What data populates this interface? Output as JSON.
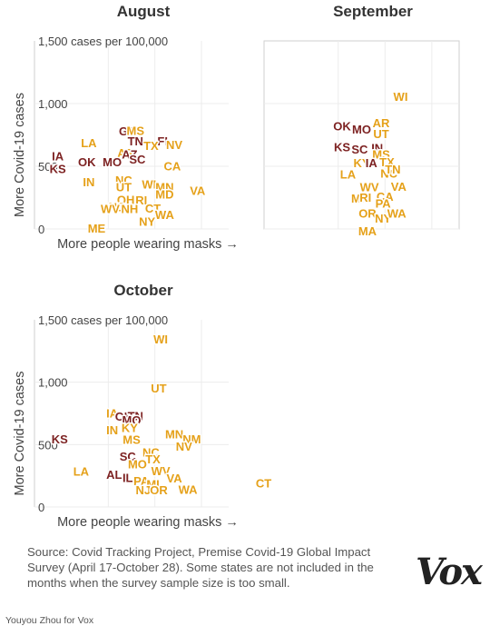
{
  "colors": {
    "above": "#7d2222",
    "below": "#e5a11a"
  },
  "labels": {
    "top_tick": "1,500 cases per 100,000",
    "ylabel": "More Covid-19 cases",
    "xlabel": "More people wearing masks →"
  },
  "source": "Source: Covid Tracking Project, Premise Covid-19 Global Impact Survey (April 17-October 28). Some states are not included in the months when the survey sample size is too small.",
  "credit": "Youyou Zhou for Vox",
  "logo": "Vox",
  "chart_data": [
    {
      "type": "scatter",
      "title": "August",
      "ylabel": "More Covid-19 cases",
      "xlabel": "More people wearing masks →",
      "yticks": [
        "0",
        "500",
        "1,000",
        "1,500 cases per 100,000"
      ],
      "ylim": [
        0,
        1500
      ],
      "show_axis_labels": true,
      "points": [
        {
          "s": "GA",
          "x": 0.48,
          "y": 775,
          "c": "above"
        },
        {
          "s": "MS",
          "x": 0.52,
          "y": 780,
          "c": "below"
        },
        {
          "s": "TN",
          "x": 0.52,
          "y": 695,
          "c": "above"
        },
        {
          "s": "FL",
          "x": 0.67,
          "y": 695,
          "c": "above"
        },
        {
          "s": "LA",
          "x": 0.28,
          "y": 680,
          "c": "below"
        },
        {
          "s": "TX",
          "x": 0.6,
          "y": 660,
          "c": "below"
        },
        {
          "s": "NV",
          "x": 0.72,
          "y": 665,
          "c": "below"
        },
        {
          "s": "AR",
          "x": 0.47,
          "y": 600,
          "c": "below"
        },
        {
          "s": "AZ",
          "x": 0.49,
          "y": 590,
          "c": "above"
        },
        {
          "s": "IA",
          "x": 0.12,
          "y": 575,
          "c": "above"
        },
        {
          "s": "SC",
          "x": 0.53,
          "y": 550,
          "c": "above"
        },
        {
          "s": "OK",
          "x": 0.27,
          "y": 530,
          "c": "above"
        },
        {
          "s": "MO",
          "x": 0.4,
          "y": 530,
          "c": "above"
        },
        {
          "s": "KS",
          "x": 0.12,
          "y": 475,
          "c": "above"
        },
        {
          "s": "CA",
          "x": 0.71,
          "y": 495,
          "c": "below"
        },
        {
          "s": "NC",
          "x": 0.46,
          "y": 385,
          "c": "below"
        },
        {
          "s": "IN",
          "x": 0.28,
          "y": 370,
          "c": "below"
        },
        {
          "s": "UT",
          "x": 0.46,
          "y": 330,
          "c": "below"
        },
        {
          "s": "WI",
          "x": 0.59,
          "y": 350,
          "c": "below"
        },
        {
          "s": "MN",
          "x": 0.67,
          "y": 330,
          "c": "below"
        },
        {
          "s": "VA",
          "x": 0.84,
          "y": 300,
          "c": "below"
        },
        {
          "s": "MD",
          "x": 0.67,
          "y": 270,
          "c": "below"
        },
        {
          "s": "OH",
          "x": 0.47,
          "y": 230,
          "c": "below"
        },
        {
          "s": "RI",
          "x": 0.55,
          "y": 225,
          "c": "below"
        },
        {
          "s": "NJ",
          "x": 0.42,
          "y": 170,
          "c": "below"
        },
        {
          "s": "WV",
          "x": 0.39,
          "y": 155,
          "c": "below"
        },
        {
          "s": "NH",
          "x": 0.49,
          "y": 155,
          "c": "below"
        },
        {
          "s": "CT",
          "x": 0.61,
          "y": 160,
          "c": "below"
        },
        {
          "s": "WA",
          "x": 0.67,
          "y": 110,
          "c": "below"
        },
        {
          "s": "NY",
          "x": 0.58,
          "y": 55,
          "c": "below"
        },
        {
          "s": "ME",
          "x": 0.32,
          "y": 0,
          "c": "below"
        }
      ]
    },
    {
      "type": "scatter",
      "title": "September",
      "yticks": [],
      "ylim": [
        0,
        1500
      ],
      "show_axis_labels": false,
      "points": [
        {
          "s": "WI",
          "x": 0.7,
          "y": 1050,
          "c": "below"
        },
        {
          "s": "AR",
          "x": 0.6,
          "y": 840,
          "c": "below"
        },
        {
          "s": "OK",
          "x": 0.4,
          "y": 815,
          "c": "above"
        },
        {
          "s": "MO",
          "x": 0.5,
          "y": 790,
          "c": "above"
        },
        {
          "s": "UT",
          "x": 0.6,
          "y": 755,
          "c": "below"
        },
        {
          "s": "KS",
          "x": 0.4,
          "y": 650,
          "c": "above"
        },
        {
          "s": "SC",
          "x": 0.49,
          "y": 630,
          "c": "above"
        },
        {
          "s": "IN",
          "x": 0.58,
          "y": 640,
          "c": "above"
        },
        {
          "s": "MS",
          "x": 0.6,
          "y": 590,
          "c": "below"
        },
        {
          "s": "KY",
          "x": 0.5,
          "y": 520,
          "c": "below"
        },
        {
          "s": "IA",
          "x": 0.55,
          "y": 520,
          "c": "above"
        },
        {
          "s": "TX",
          "x": 0.63,
          "y": 530,
          "c": "below"
        },
        {
          "s": "LA",
          "x": 0.43,
          "y": 430,
          "c": "below"
        },
        {
          "s": "NC",
          "x": 0.64,
          "y": 440,
          "c": "below"
        },
        {
          "s": "TN",
          "x": 0.66,
          "y": 470,
          "c": "below"
        },
        {
          "s": "WV",
          "x": 0.54,
          "y": 330,
          "c": "below"
        },
        {
          "s": "VA",
          "x": 0.69,
          "y": 335,
          "c": "below"
        },
        {
          "s": "MI",
          "x": 0.48,
          "y": 240,
          "c": "below"
        },
        {
          "s": "RI",
          "x": 0.52,
          "y": 245,
          "c": "below"
        },
        {
          "s": "CA",
          "x": 0.62,
          "y": 255,
          "c": "below"
        },
        {
          "s": "PA",
          "x": 0.61,
          "y": 200,
          "c": "below"
        },
        {
          "s": "OR",
          "x": 0.53,
          "y": 120,
          "c": "below"
        },
        {
          "s": "NY",
          "x": 0.61,
          "y": 80,
          "c": "below"
        },
        {
          "s": "WA",
          "x": 0.68,
          "y": 120,
          "c": "below"
        },
        {
          "s": "MA",
          "x": 0.53,
          "y": -20,
          "c": "below"
        }
      ]
    },
    {
      "type": "scatter",
      "title": "October",
      "ylabel": "More Covid-19 cases",
      "xlabel": "More people wearing masks →",
      "yticks": [
        "0",
        "500",
        "1,000",
        "1,500 cases per 100,000"
      ],
      "ylim": [
        0,
        1500
      ],
      "show_axis_labels": true,
      "points": [
        {
          "s": "WI",
          "x": 0.65,
          "y": 1340,
          "c": "below"
        },
        {
          "s": "UT",
          "x": 0.64,
          "y": 945,
          "c": "below"
        },
        {
          "s": "IA",
          "x": 0.4,
          "y": 745,
          "c": "below"
        },
        {
          "s": "OK",
          "x": 0.46,
          "y": 720,
          "c": "above"
        },
        {
          "s": "TN",
          "x": 0.52,
          "y": 725,
          "c": "above"
        },
        {
          "s": "MO",
          "x": 0.5,
          "y": 690,
          "c": "above"
        },
        {
          "s": "IN",
          "x": 0.4,
          "y": 610,
          "c": "below"
        },
        {
          "s": "KY",
          "x": 0.49,
          "y": 630,
          "c": "below"
        },
        {
          "s": "MN",
          "x": 0.72,
          "y": 580,
          "c": "below"
        },
        {
          "s": "NM",
          "x": 0.81,
          "y": 540,
          "c": "below"
        },
        {
          "s": "KS",
          "x": 0.13,
          "y": 540,
          "c": "above"
        },
        {
          "s": "MS",
          "x": 0.5,
          "y": 535,
          "c": "below"
        },
        {
          "s": "NV",
          "x": 0.77,
          "y": 480,
          "c": "below"
        },
        {
          "s": "NC",
          "x": 0.6,
          "y": 435,
          "c": "below"
        },
        {
          "s": "SC",
          "x": 0.48,
          "y": 400,
          "c": "above"
        },
        {
          "s": "TX",
          "x": 0.61,
          "y": 380,
          "c": "below"
        },
        {
          "s": "MO2",
          "label": "MO",
          "x": 0.53,
          "y": 340,
          "c": "below"
        },
        {
          "s": "LA",
          "x": 0.24,
          "y": 280,
          "c": "below"
        },
        {
          "s": "AL",
          "x": 0.41,
          "y": 255,
          "c": "above"
        },
        {
          "s": "WV",
          "x": 0.65,
          "y": 285,
          "c": "below"
        },
        {
          "s": "IL",
          "x": 0.48,
          "y": 230,
          "c": "above"
        },
        {
          "s": "PA",
          "x": 0.55,
          "y": 205,
          "c": "below"
        },
        {
          "s": "VA",
          "x": 0.72,
          "y": 225,
          "c": "below"
        },
        {
          "s": "MI",
          "x": 0.61,
          "y": 180,
          "c": "below"
        },
        {
          "s": "NJ",
          "x": 0.56,
          "y": 130,
          "c": "below"
        },
        {
          "s": "OR",
          "x": 0.64,
          "y": 130,
          "c": "below"
        },
        {
          "s": "WA",
          "x": 0.79,
          "y": 135,
          "c": "below"
        },
        {
          "s": "CT",
          "x": 1.18,
          "y": 185,
          "c": "below"
        }
      ]
    }
  ]
}
